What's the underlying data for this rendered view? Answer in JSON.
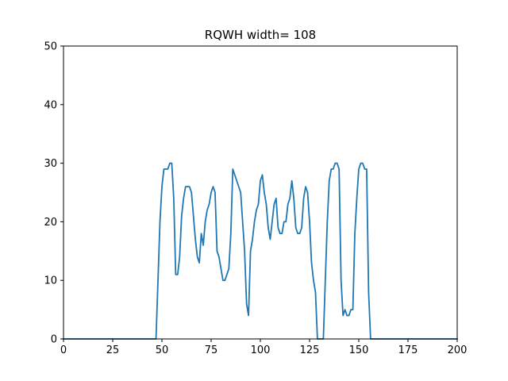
{
  "chart_data": {
    "type": "line",
    "title": "RQWH width= 108",
    "xlabel": "",
    "ylabel": "",
    "xlim": [
      0,
      200
    ],
    "ylim": [
      0,
      50
    ],
    "xticks": [
      0,
      25,
      50,
      75,
      100,
      125,
      150,
      175,
      200
    ],
    "yticks": [
      0,
      10,
      20,
      30,
      40,
      50
    ],
    "grid": false,
    "legend": "none",
    "series": [
      {
        "color": "#1f77b4",
        "x": [
          0,
          47,
          49,
          50,
          51,
          52,
          53,
          54,
          55,
          56,
          57,
          58,
          59,
          60,
          61,
          62,
          63,
          64,
          65,
          66,
          67,
          68,
          69,
          70,
          71,
          72,
          73,
          74,
          75,
          76,
          77,
          78,
          79,
          80,
          81,
          82,
          83,
          84,
          85,
          86,
          87,
          88,
          89,
          90,
          91,
          92,
          93,
          94,
          95,
          96,
          97,
          98,
          99,
          100,
          101,
          102,
          103,
          104,
          105,
          106,
          107,
          108,
          109,
          110,
          111,
          112,
          113,
          114,
          115,
          116,
          117,
          118,
          119,
          120,
          121,
          122,
          123,
          124,
          125,
          126,
          127,
          128,
          129,
          130,
          131,
          132,
          133,
          134,
          135,
          136,
          137,
          138,
          139,
          140,
          141,
          142,
          143,
          144,
          145,
          146,
          147,
          148,
          149,
          150,
          151,
          152,
          153,
          154,
          155,
          156,
          200
        ],
        "y": [
          0,
          0,
          20,
          26,
          29,
          29,
          29,
          30,
          30,
          24,
          11,
          11,
          14,
          21,
          24,
          26,
          26,
          26,
          25,
          21,
          17,
          14,
          13,
          18,
          16,
          20,
          22,
          23,
          25,
          26,
          25,
          15,
          14,
          12,
          10,
          10,
          11,
          12,
          18,
          29,
          28,
          27,
          26,
          25,
          20,
          15,
          6,
          4,
          15,
          17,
          20,
          22,
          23,
          27,
          28,
          25,
          23,
          19,
          17,
          20,
          23,
          24,
          19,
          18,
          18,
          20,
          20,
          23,
          24,
          27,
          24,
          19,
          18,
          18,
          19,
          24,
          26,
          25,
          20,
          13,
          10,
          8,
          0,
          0,
          0,
          0,
          10,
          20,
          27,
          29,
          29,
          30,
          30,
          29,
          10,
          4,
          5,
          4,
          4,
          5,
          5,
          18,
          24,
          29,
          30,
          30,
          29,
          29,
          8,
          0,
          0
        ]
      }
    ]
  }
}
